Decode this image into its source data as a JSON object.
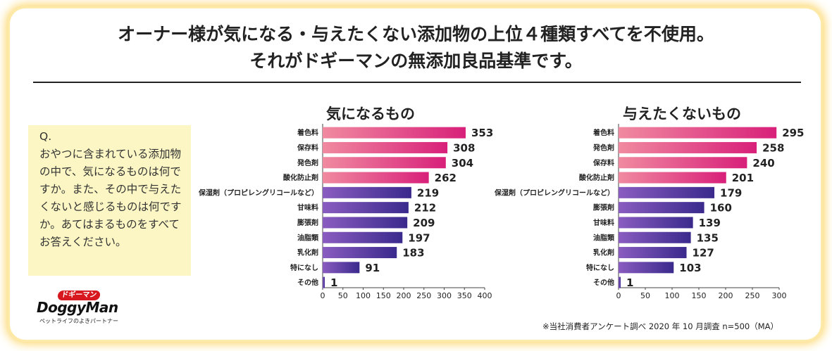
{
  "title": {
    "line1": "オーナー様が気になる・与えたくない添加物の上位４種類すべてを不使用。",
    "line2": "それがドギーマンの無添加良品基準です。"
  },
  "question": {
    "head": "Q.",
    "body": "おやつに含まれている添加物の中で、気になるものは何ですか。また、その中で与えたくないと感じるものは何ですか。あてはまるものをすべてお答えください。"
  },
  "logo": {
    "badge": "ドギーマン",
    "wordmark": "DoggyMan",
    "tagline": "ペットライフのよきパートナー"
  },
  "source_note": "※当社消費者アンケート調べ 2020 年 10 月調査 n=500（MA）",
  "colors": {
    "top_bar_left": "#f08aa0",
    "top_bar_right": "#d8207a",
    "rest_bar_left": "#8a5cc0",
    "rest_bar_right": "#3a2a8c"
  },
  "chart_data": [
    {
      "type": "bar",
      "title": "気になるもの",
      "categories": [
        "着色料",
        "保存料",
        "発色剤",
        "酸化防止剤",
        "保湿剤（プロピレングリコールなど）",
        "甘味料",
        "膨張剤",
        "油脂類",
        "乳化剤",
        "特になし",
        "その他"
      ],
      "values": [
        353,
        308,
        304,
        262,
        219,
        212,
        209,
        197,
        183,
        91,
        1
      ],
      "highlight_count": 4,
      "xlim": [
        0,
        400
      ],
      "xticks": [
        0,
        50,
        100,
        150,
        200,
        250,
        300,
        350,
        400
      ]
    },
    {
      "type": "bar",
      "title": "与えたくないもの",
      "categories": [
        "着色料",
        "発色剤",
        "保存料",
        "酸化防止剤",
        "保湿剤（プロピレングリコールなど）",
        "膨張剤",
        "甘味料",
        "油脂類",
        "乳化剤",
        "特になし",
        "その他"
      ],
      "values": [
        295,
        258,
        240,
        201,
        179,
        160,
        139,
        135,
        127,
        103,
        1
      ],
      "highlight_count": 4,
      "xlim": [
        0,
        300
      ],
      "xticks": [
        0,
        50,
        100,
        150,
        200,
        250,
        300
      ]
    }
  ]
}
